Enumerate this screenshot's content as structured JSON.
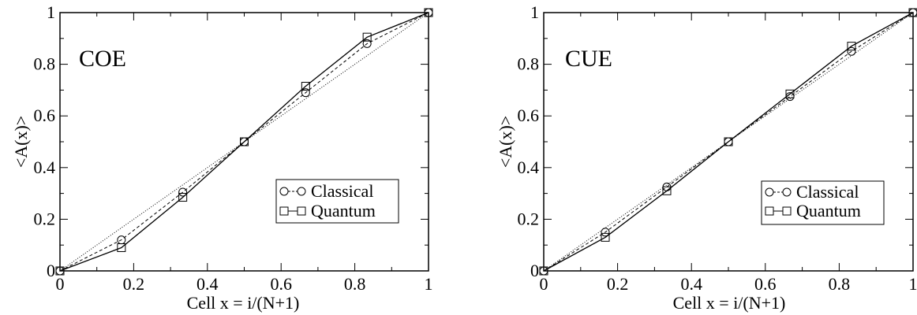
{
  "chart_data": [
    {
      "type": "line",
      "annotation": "COE",
      "xlabel": "Cell  x = i/(N+1)",
      "ylabel": "<A(x)>",
      "xlim": [
        0,
        1
      ],
      "ylim": [
        0,
        1
      ],
      "xticks": [
        "0",
        "0.2",
        "0.4",
        "0.6",
        "0.8",
        "1"
      ],
      "yticks": [
        "0",
        "0.2",
        "0.4",
        "0.6",
        "0.8",
        "1"
      ],
      "legend_position": "lower-right",
      "grid": false,
      "x": [
        0,
        0.1667,
        0.3333,
        0.5,
        0.6667,
        0.8333,
        1
      ],
      "series": [
        {
          "name": "Classical",
          "marker": "circle",
          "line": "dashed",
          "values": [
            0,
            0.12,
            0.305,
            0.5,
            0.69,
            0.88,
            1
          ]
        },
        {
          "name": "Quantum",
          "marker": "square",
          "line": "solid",
          "values": [
            0,
            0.09,
            0.285,
            0.5,
            0.715,
            0.905,
            1
          ]
        },
        {
          "name": "",
          "marker": "none",
          "line": "dotted",
          "values": [
            0,
            0.1667,
            0.3333,
            0.5,
            0.6667,
            0.8333,
            1
          ]
        }
      ]
    },
    {
      "type": "line",
      "annotation": "CUE",
      "xlabel": "Cell  x = i/(N+1)",
      "ylabel": "<A(x)>",
      "xlim": [
        0,
        1
      ],
      "ylim": [
        0,
        1
      ],
      "xticks": [
        "0",
        "0.2",
        "0.4",
        "0.6",
        "0.8",
        "1"
      ],
      "yticks": [
        "0",
        "0.2",
        "0.4",
        "0.6",
        "0.8",
        "1"
      ],
      "legend_position": "lower-right",
      "grid": false,
      "x": [
        0,
        0.1667,
        0.3333,
        0.5,
        0.6667,
        0.8333,
        1
      ],
      "series": [
        {
          "name": "Classical",
          "marker": "circle",
          "line": "dashed",
          "values": [
            0,
            0.15,
            0.325,
            0.5,
            0.675,
            0.85,
            1
          ]
        },
        {
          "name": "Quantum",
          "marker": "square",
          "line": "solid",
          "values": [
            0,
            0.13,
            0.31,
            0.5,
            0.685,
            0.87,
            1
          ]
        },
        {
          "name": "",
          "marker": "none",
          "line": "dotted",
          "values": [
            0,
            0.1667,
            0.3333,
            0.5,
            0.6667,
            0.8333,
            1
          ]
        }
      ]
    }
  ]
}
